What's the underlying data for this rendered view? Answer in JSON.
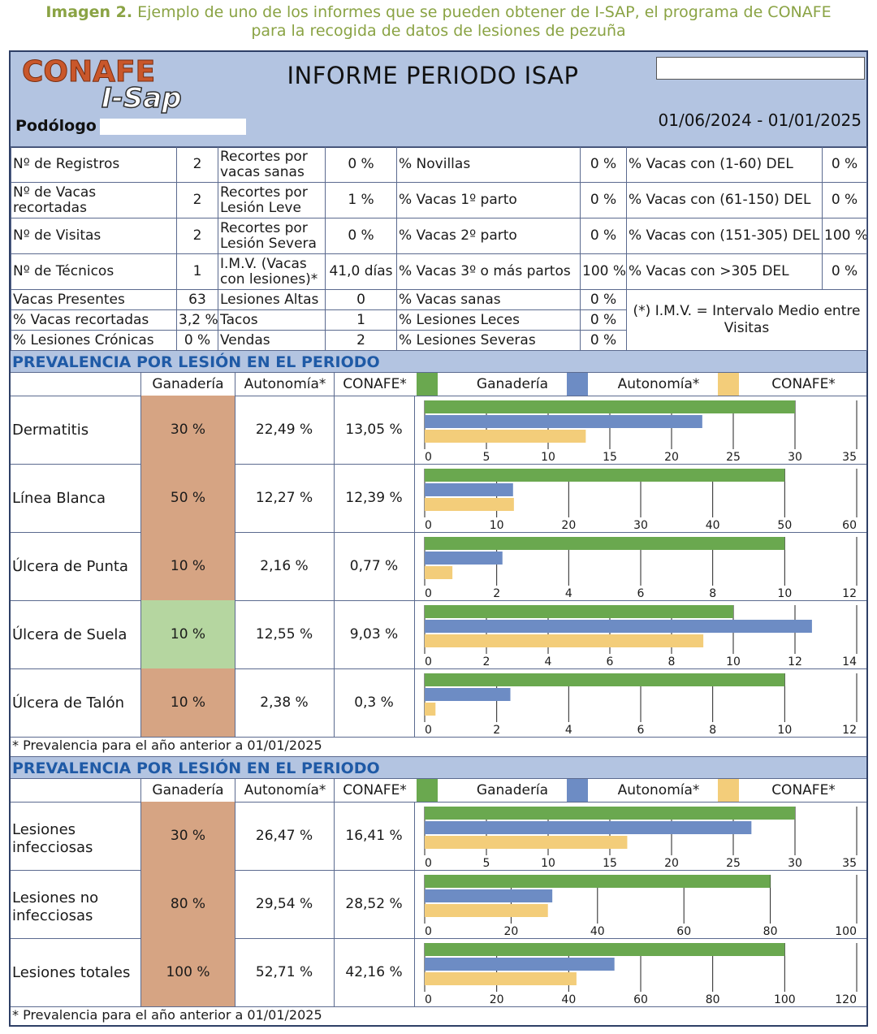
{
  "caption": {
    "lead": "Imagen 2.",
    "line1_rest": " Ejemplo de uno de los informes que se pueden obtener de I-SAP, el programa de CONAFE",
    "line2": "para la recogida de datos de lesiones de pezuña"
  },
  "header": {
    "logo_top": "CONAFE",
    "logo_bottom": "I-Sap",
    "title": "INFORME PERIODO ISAP",
    "podologo_label": "Podólogo",
    "period": "01/06/2024 - 01/01/2025"
  },
  "summary": {
    "rows": [
      [
        "Nº de Registros",
        "2",
        "Recortes por|vacas sanas",
        "0 %",
        "% Novillas",
        "0 %",
        "% Vacas con (1-60) DEL",
        "0 %"
      ],
      [
        "Nº de Vacas|recortadas",
        "2",
        "Recortes por|Lesión Leve",
        "1 %",
        "% Vacas 1º parto",
        "0 %",
        "% Vacas con (61-150) DEL",
        "0 %"
      ],
      [
        "Nº de Visitas",
        "2",
        "Recortes por|Lesión Severa",
        "0 %",
        "% Vacas 2º parto",
        "0 %",
        "% Vacas con (151-305) DEL",
        "100 %"
      ],
      [
        "Nº de Técnicos",
        "1",
        "I.M.V. (Vacas|con lesiones)*",
        "41,0 días",
        "% Vacas 3º o más partos",
        "100 %",
        "% Vacas con >305 DEL",
        "0 %"
      ]
    ],
    "small_rows": [
      [
        "Vacas Presentes",
        "63",
        "Lesiones Altas",
        "0",
        "% Vacas sanas",
        "0 %"
      ],
      [
        "% Vacas recortadas",
        "3,2 %",
        "Tacos",
        "1",
        "% Lesiones Leces",
        "0 %"
      ],
      [
        "% Lesiones Crónicas",
        "0 %",
        "Vendas",
        "2",
        "% Lesiones Severas",
        "0 %"
      ]
    ],
    "imv_note": "(*) I.M.V. = Intervalo Medio entre Visitas"
  },
  "sections": [
    {
      "title": "PREVALENCIA POR LESIÓN EN EL PERIODO",
      "footnote": "* Prevalencia para el año anterior a 01/01/2025"
    },
    {
      "title": "PREVALENCIA POR LESIÓN EN EL PERIODO",
      "footnote": "* Prevalencia para el año anterior a 01/01/2025"
    }
  ],
  "columns": {
    "ganaderia": "Ganadería",
    "autonomia": "Autonomía*",
    "conafe": "CONAFE*"
  },
  "legend": {
    "ganaderia": "Ganadería",
    "autonomia": "Autonomía*",
    "conafe": "CONAFE*"
  },
  "colors": {
    "ganaderia": "#6aa84f",
    "autonomia": "#6d8cc4",
    "conafe": "#f3cd7a",
    "cell_highlight": "#d6a483",
    "cell_good": "#b5d6a0",
    "header_bg": "#b3c4e1",
    "section_text": "#1f5aa6"
  },
  "chart_data": [
    {
      "type": "bar",
      "label": "Dermatitis",
      "ganaderia_label": "30 %",
      "autonomia_label": "22,49 %",
      "conafe_label": "13,05 %",
      "values": [
        30,
        22.49,
        13.05
      ],
      "xlim": [
        0,
        35
      ],
      "ticks": [
        0,
        5,
        10,
        15,
        20,
        25,
        30,
        35
      ],
      "cell_status": "bad"
    },
    {
      "type": "bar",
      "label": "Línea Blanca",
      "ganaderia_label": "50 %",
      "autonomia_label": "12,27 %",
      "conafe_label": "12,39 %",
      "values": [
        50,
        12.27,
        12.39
      ],
      "xlim": [
        0,
        60
      ],
      "ticks": [
        0,
        10,
        20,
        30,
        40,
        50,
        60
      ],
      "cell_status": "bad"
    },
    {
      "type": "bar",
      "label": "Úlcera de Punta",
      "ganaderia_label": "10 %",
      "autonomia_label": "2,16 %",
      "conafe_label": "0,77 %",
      "values": [
        10,
        2.16,
        0.77
      ],
      "xlim": [
        0,
        12
      ],
      "ticks": [
        0,
        2,
        4,
        6,
        8,
        10,
        12
      ],
      "cell_status": "bad"
    },
    {
      "type": "bar",
      "label": "Úlcera de Suela",
      "ganaderia_label": "10 %",
      "autonomia_label": "12,55 %",
      "conafe_label": "9,03 %",
      "values": [
        10,
        12.55,
        9.03
      ],
      "xlim": [
        0,
        14
      ],
      "ticks": [
        0,
        2,
        4,
        6,
        8,
        10,
        12,
        14
      ],
      "cell_status": "good"
    },
    {
      "type": "bar",
      "label": "Úlcera de Talón",
      "ganaderia_label": "10 %",
      "autonomia_label": "2,38 %",
      "conafe_label": "0,3 %",
      "values": [
        10,
        2.38,
        0.3
      ],
      "xlim": [
        0,
        12
      ],
      "ticks": [
        0,
        2,
        4,
        6,
        8,
        10,
        12
      ],
      "cell_status": "bad"
    },
    {
      "type": "bar",
      "label": "Lesiones infecciosas",
      "ganaderia_label": "30 %",
      "autonomia_label": "26,47 %",
      "conafe_label": "16,41 %",
      "values": [
        30,
        26.47,
        16.41
      ],
      "xlim": [
        0,
        35
      ],
      "ticks": [
        0,
        5,
        10,
        15,
        20,
        25,
        30,
        35
      ],
      "cell_status": "bad"
    },
    {
      "type": "bar",
      "label": "Lesiones no infecciosas",
      "ganaderia_label": "80 %",
      "autonomia_label": "29,54 %",
      "conafe_label": "28,52 %",
      "values": [
        80,
        29.54,
        28.52
      ],
      "xlim": [
        0,
        100
      ],
      "ticks": [
        0,
        20,
        40,
        60,
        80,
        100
      ],
      "cell_status": "bad"
    },
    {
      "type": "bar",
      "label": "Lesiones totales",
      "ganaderia_label": "100 %",
      "autonomia_label": "52,71 %",
      "conafe_label": "42,16 %",
      "values": [
        100,
        52.71,
        42.16
      ],
      "xlim": [
        0,
        120
      ],
      "ticks": [
        0,
        20,
        40,
        60,
        80,
        100,
        120
      ],
      "cell_status": "bad"
    }
  ]
}
